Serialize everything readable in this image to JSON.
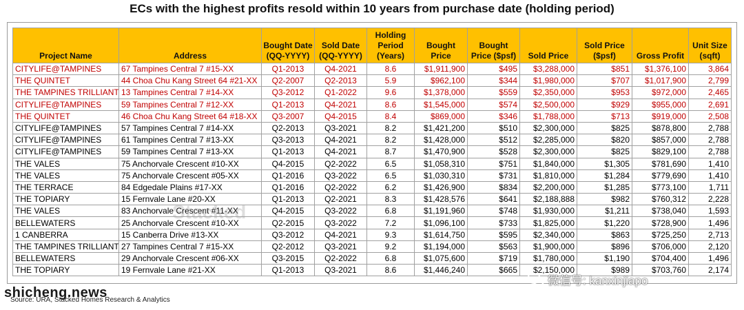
{
  "title": "ECs with the highest profits resold within 10 years from purchase date (holding period)",
  "headers": [
    "Project Name",
    "Address",
    "Bought Date (QQ-YYYY)",
    "Sold Date (QQ-YYYY)",
    "Holding Period (Years)",
    "Bought Price",
    "Bought Price ($psf)",
    "Sold Price",
    "Sold Price ($psf)",
    "Gross Profit",
    "Unit Size (sqft)"
  ],
  "rows": [
    {
      "highlight": true,
      "cells": [
        "CITYLIFE@TAMPINES",
        "67 Tampines Central 7 #15-XX",
        "Q1-2013",
        "Q4-2021",
        "8.6",
        "$1,911,900",
        "$495",
        "$3,288,000",
        "$851",
        "$1,376,100",
        "3,864"
      ]
    },
    {
      "highlight": true,
      "cells": [
        "THE QUINTET",
        "44 Choa Chu Kang Street 64 #21-XX",
        "Q2-2007",
        "Q2-2013",
        "5.9",
        "$962,100",
        "$344",
        "$1,980,000",
        "$707",
        "$1,017,900",
        "2,799"
      ]
    },
    {
      "highlight": true,
      "cells": [
        "THE TAMPINES TRILLIANT",
        "13 Tampines Central 7 #14-XX",
        "Q3-2012",
        "Q1-2022",
        "9.6",
        "$1,378,000",
        "$559",
        "$2,350,000",
        "$953",
        "$972,000",
        "2,465"
      ]
    },
    {
      "highlight": true,
      "cells": [
        "CITYLIFE@TAMPINES",
        "59 Tampines Central 7 #12-XX",
        "Q1-2013",
        "Q4-2021",
        "8.6",
        "$1,545,000",
        "$574",
        "$2,500,000",
        "$929",
        "$955,000",
        "2,691"
      ]
    },
    {
      "highlight": true,
      "cells": [
        "THE QUINTET",
        "46 Choa Chu Kang Street 64 #18-XX",
        "Q3-2007",
        "Q4-2015",
        "8.4",
        "$869,000",
        "$346",
        "$1,788,000",
        "$713",
        "$919,000",
        "2,508"
      ]
    },
    {
      "highlight": false,
      "cells": [
        "CITYLIFE@TAMPINES",
        "57 Tampines Central 7 #14-XX",
        "Q2-2013",
        "Q3-2021",
        "8.2",
        "$1,421,200",
        "$510",
        "$2,300,000",
        "$825",
        "$878,800",
        "2,788"
      ]
    },
    {
      "highlight": false,
      "cells": [
        "CITYLIFE@TAMPINES",
        "61 Tampines Central 7 #13-XX",
        "Q3-2013",
        "Q4-2021",
        "8.2",
        "$1,428,000",
        "$512",
        "$2,285,000",
        "$820",
        "$857,000",
        "2,788"
      ]
    },
    {
      "highlight": false,
      "cells": [
        "CITYLIFE@TAMPINES",
        "59 Tampines Central 7 #13-XX",
        "Q1-2013",
        "Q4-2021",
        "8.7",
        "$1,470,900",
        "$528",
        "$2,300,000",
        "$825",
        "$829,100",
        "2,788"
      ]
    },
    {
      "highlight": false,
      "cells": [
        "THE VALES",
        "75 Anchorvale Crescent #10-XX",
        "Q4-2015",
        "Q2-2022",
        "6.5",
        "$1,058,310",
        "$751",
        "$1,840,000",
        "$1,305",
        "$781,690",
        "1,410"
      ]
    },
    {
      "highlight": false,
      "cells": [
        "THE VALES",
        "75 Anchorvale Crescent #05-XX",
        "Q1-2016",
        "Q3-2022",
        "6.5",
        "$1,030,310",
        "$731",
        "$1,810,000",
        "$1,284",
        "$779,690",
        "1,410"
      ]
    },
    {
      "highlight": false,
      "cells": [
        "THE TERRACE",
        "84 Edgedale Plains #17-XX",
        "Q1-2016",
        "Q2-2022",
        "6.2",
        "$1,426,900",
        "$834",
        "$2,200,000",
        "$1,285",
        "$773,100",
        "1,711"
      ]
    },
    {
      "highlight": false,
      "cells": [
        "THE TOPIARY",
        "15 Fernvale Lane #20-XX",
        "Q1-2013",
        "Q2-2021",
        "8.3",
        "$1,428,576",
        "$641",
        "$2,188,888",
        "$982",
        "$760,312",
        "2,228"
      ]
    },
    {
      "highlight": false,
      "cells": [
        "THE VALES",
        "83 Anchorvale Crescent #11-XX",
        "Q4-2015",
        "Q3-2022",
        "6.8",
        "$1,191,960",
        "$748",
        "$1,930,000",
        "$1,211",
        "$738,040",
        "1,593"
      ]
    },
    {
      "highlight": false,
      "cells": [
        "BELLEWATERS",
        "25 Anchorvale Crescent #10-XX",
        "Q2-2015",
        "Q3-2022",
        "7.2",
        "$1,096,100",
        "$733",
        "$1,825,000",
        "$1,220",
        "$728,900",
        "1,496"
      ]
    },
    {
      "highlight": false,
      "cells": [
        "1 CANBERRA",
        "15 Canberra Drive #13-XX",
        "Q3-2012",
        "Q4-2021",
        "9.3",
        "$1,614,750",
        "$595",
        "$2,340,000",
        "$863",
        "$725,250",
        "2,713"
      ]
    },
    {
      "highlight": false,
      "cells": [
        "THE TAMPINES TRILLIANT",
        "27 Tampines Central 7 #15-XX",
        "Q2-2012",
        "Q3-2021",
        "9.2",
        "$1,194,000",
        "$563",
        "$1,900,000",
        "$896",
        "$706,000",
        "2,120"
      ]
    },
    {
      "highlight": false,
      "cells": [
        "BELLEWATERS",
        "29 Anchorvale Crescent #06-XX",
        "Q3-2015",
        "Q2-2022",
        "6.8",
        "$1,075,600",
        "$719",
        "$1,780,000",
        "$1,190",
        "$704,400",
        "1,496"
      ]
    },
    {
      "highlight": false,
      "cells": [
        "THE TOPIARY",
        "19 Fernvale Lane #21-XX",
        "Q1-2013",
        "Q3-2021",
        "8.6",
        "$1,446,240",
        "$665",
        "$2,150,000",
        "$989",
        "$703,760",
        "2,174"
      ]
    }
  ],
  "source": "Source: URA, Stacked Homes Research & Analytics",
  "watermark_left": "shicheng.news",
  "watermark_right": "微信号: kanxinjiapo",
  "watermark_center": "Stacked",
  "colors": {
    "header_bg": "#ffc000",
    "highlight_text": "#c00000"
  }
}
